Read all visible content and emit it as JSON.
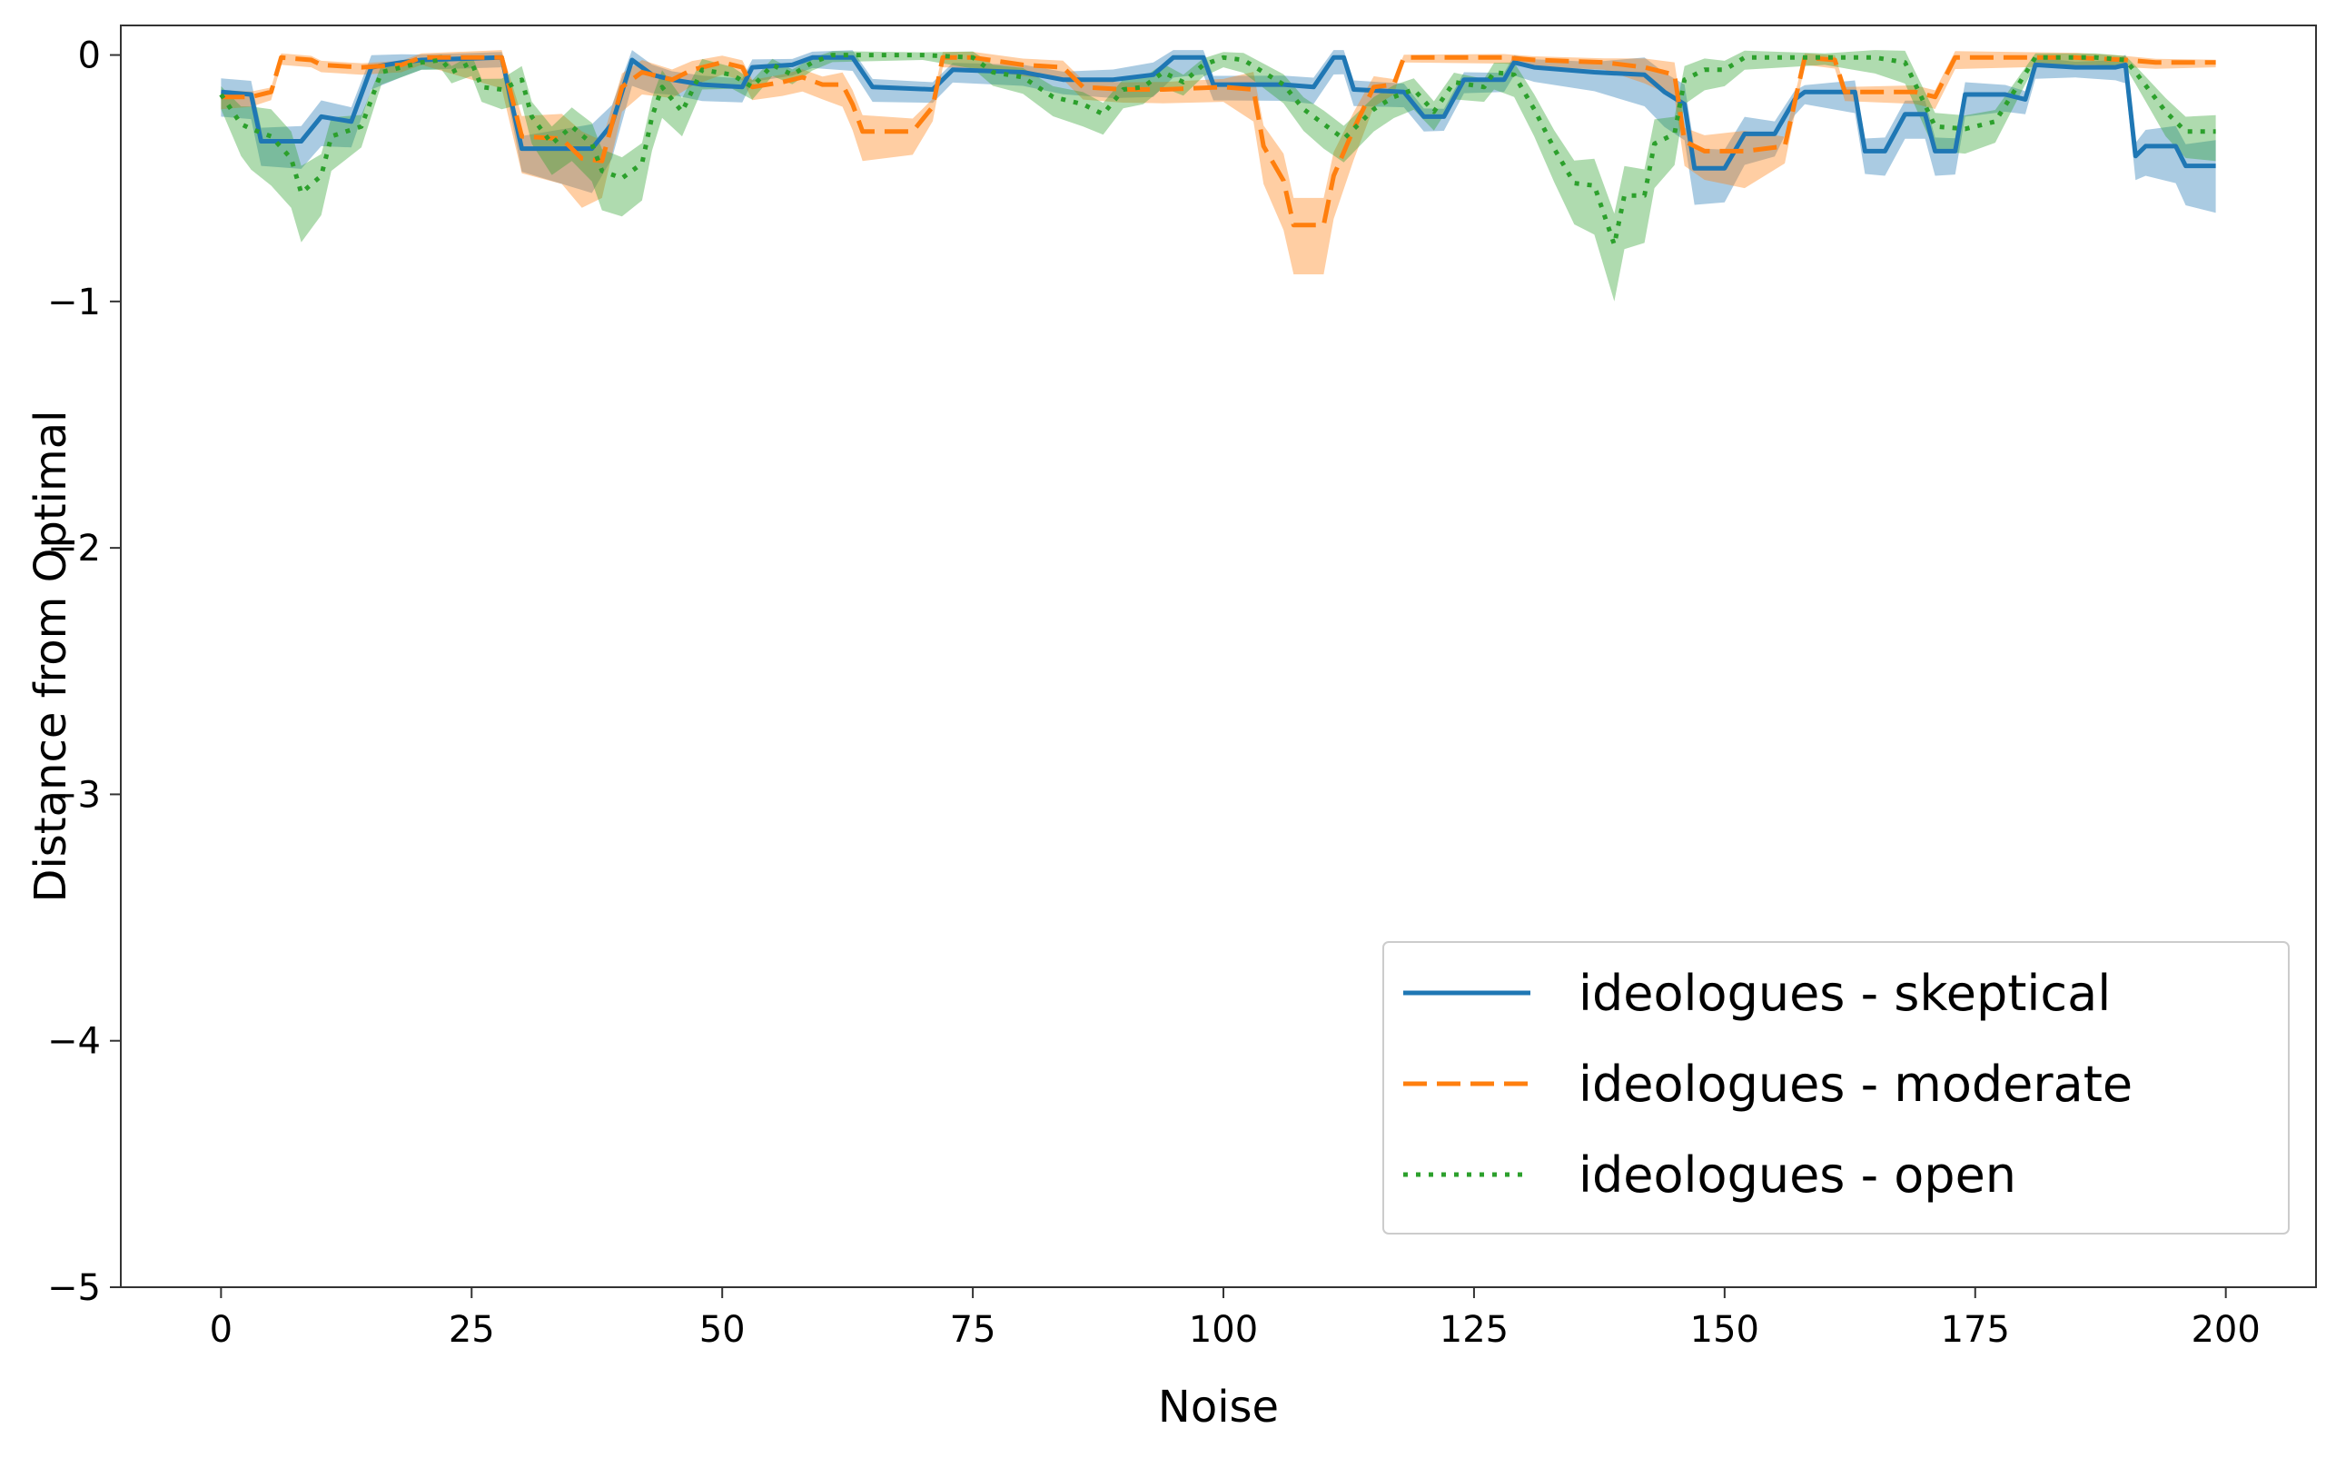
{
  "chart_data": {
    "type": "line",
    "title": "",
    "xlabel": "Noise",
    "ylabel": "Distance from Optimal",
    "xlim": [
      -10,
      209
    ],
    "ylim": [
      -5,
      0.12
    ],
    "xticks": [
      0,
      25,
      50,
      75,
      100,
      125,
      150,
      175,
      200
    ],
    "yticks": [
      0,
      -1,
      -2,
      -3,
      -4,
      -5
    ],
    "xtick_labels": [
      "0",
      "25",
      "50",
      "75",
      "100",
      "125",
      "150",
      "175",
      "200"
    ],
    "ytick_labels": [
      "0",
      "−1",
      "−2",
      "−3",
      "−4",
      "−5"
    ],
    "grid": false,
    "legend_position": "bottom-right",
    "band": "shaded variability band around each series",
    "series": [
      {
        "name": "ideologues - skeptical",
        "color": "#1f77b4",
        "style": "solid",
        "points": [
          [
            0,
            -0.15
          ],
          [
            3,
            -0.16
          ],
          [
            4,
            -0.35
          ],
          [
            8,
            -0.35
          ],
          [
            10,
            -0.25
          ],
          [
            13,
            -0.27
          ],
          [
            15,
            -0.05
          ],
          [
            18,
            -0.03
          ],
          [
            20,
            -0.02
          ],
          [
            28,
            -0.01
          ],
          [
            30,
            -0.38
          ],
          [
            37,
            -0.38
          ],
          [
            39,
            -0.28
          ],
          [
            41,
            -0.02
          ],
          [
            43,
            -0.08
          ],
          [
            45,
            -0.1
          ],
          [
            48,
            -0.12
          ],
          [
            52,
            -0.13
          ],
          [
            53,
            -0.05
          ],
          [
            57,
            -0.04
          ],
          [
            59,
            -0.01
          ],
          [
            63,
            -0.01
          ],
          [
            65,
            -0.13
          ],
          [
            71,
            -0.14
          ],
          [
            73,
            -0.06
          ],
          [
            80,
            -0.07
          ],
          [
            84,
            -0.1
          ],
          [
            89,
            -0.1
          ],
          [
            93,
            -0.08
          ],
          [
            95,
            -0.01
          ],
          [
            98,
            -0.01
          ],
          [
            99,
            -0.12
          ],
          [
            106,
            -0.12
          ],
          [
            109,
            -0.13
          ],
          [
            111,
            -0.01
          ],
          [
            112,
            -0.01
          ],
          [
            113,
            -0.14
          ],
          [
            118,
            -0.15
          ],
          [
            120,
            -0.25
          ],
          [
            122,
            -0.25
          ],
          [
            124,
            -0.1
          ],
          [
            128,
            -0.1
          ],
          [
            129,
            -0.03
          ],
          [
            131,
            -0.05
          ],
          [
            137,
            -0.07
          ],
          [
            142,
            -0.08
          ],
          [
            144,
            -0.15
          ],
          [
            146,
            -0.2
          ],
          [
            147,
            -0.46
          ],
          [
            150,
            -0.46
          ],
          [
            152,
            -0.32
          ],
          [
            155,
            -0.32
          ],
          [
            157,
            -0.18
          ],
          [
            158,
            -0.15
          ],
          [
            163,
            -0.15
          ],
          [
            164,
            -0.39
          ],
          [
            166,
            -0.39
          ],
          [
            168,
            -0.24
          ],
          [
            170,
            -0.24
          ],
          [
            171,
            -0.39
          ],
          [
            173,
            -0.39
          ],
          [
            174,
            -0.16
          ],
          [
            178,
            -0.16
          ],
          [
            180,
            -0.18
          ],
          [
            181,
            -0.04
          ],
          [
            185,
            -0.05
          ],
          [
            189,
            -0.05
          ],
          [
            190,
            -0.04
          ],
          [
            191,
            -0.41
          ],
          [
            192,
            -0.37
          ],
          [
            195,
            -0.37
          ],
          [
            196,
            -0.45
          ],
          [
            199,
            -0.45
          ]
        ],
        "bands": [
          [
            0,
            0.1
          ],
          [
            5,
            0.1
          ],
          [
            10,
            0.12
          ],
          [
            14,
            0.1
          ],
          [
            20,
            0.04
          ],
          [
            28,
            0.04
          ],
          [
            31,
            0.12
          ],
          [
            37,
            0.18
          ],
          [
            40,
            0.12
          ],
          [
            44,
            0.06
          ],
          [
            50,
            0.07
          ],
          [
            58,
            0.04
          ],
          [
            65,
            0.06
          ],
          [
            75,
            0.05
          ],
          [
            85,
            0.06
          ],
          [
            93,
            0.09
          ],
          [
            100,
            0.06
          ],
          [
            110,
            0.07
          ],
          [
            120,
            0.06
          ],
          [
            128,
            0.05
          ],
          [
            138,
            0.08
          ],
          [
            143,
            0.14
          ],
          [
            148,
            0.15
          ],
          [
            153,
            0.12
          ],
          [
            158,
            0.05
          ],
          [
            165,
            0.1
          ],
          [
            172,
            0.1
          ],
          [
            180,
            0.06
          ],
          [
            188,
            0.03
          ],
          [
            192,
            0.12
          ],
          [
            199,
            0.19
          ]
        ]
      },
      {
        "name": "ideologues - moderate",
        "color": "#ff7f0e",
        "style": "dashed",
        "points": [
          [
            0,
            -0.17
          ],
          [
            3,
            -0.17
          ],
          [
            5,
            -0.15
          ],
          [
            6,
            -0.01
          ],
          [
            9,
            -0.02
          ],
          [
            10,
            -0.04
          ],
          [
            14,
            -0.05
          ],
          [
            18,
            -0.04
          ],
          [
            20,
            -0.01
          ],
          [
            28,
            -0.01
          ],
          [
            30,
            -0.33
          ],
          [
            34,
            -0.34
          ],
          [
            36,
            -0.42
          ],
          [
            38,
            -0.43
          ],
          [
            40,
            -0.13
          ],
          [
            42,
            -0.07
          ],
          [
            45,
            -0.1
          ],
          [
            47,
            -0.06
          ],
          [
            50,
            -0.03
          ],
          [
            52,
            -0.05
          ],
          [
            53,
            -0.13
          ],
          [
            56,
            -0.11
          ],
          [
            58,
            -0.09
          ],
          [
            60,
            -0.12
          ],
          [
            62,
            -0.12
          ],
          [
            63,
            -0.2
          ],
          [
            64,
            -0.31
          ],
          [
            69,
            -0.31
          ],
          [
            71,
            -0.21
          ],
          [
            72,
            -0.01
          ],
          [
            75,
            -0.01
          ],
          [
            80,
            -0.04
          ],
          [
            84,
            -0.05
          ],
          [
            86,
            -0.13
          ],
          [
            90,
            -0.14
          ],
          [
            94,
            -0.14
          ],
          [
            100,
            -0.13
          ],
          [
            103,
            -0.14
          ],
          [
            104,
            -0.37
          ],
          [
            106,
            -0.51
          ],
          [
            107,
            -0.69
          ],
          [
            110,
            -0.69
          ],
          [
            111,
            -0.49
          ],
          [
            113,
            -0.3
          ],
          [
            115,
            -0.13
          ],
          [
            117,
            -0.12
          ],
          [
            118,
            -0.01
          ],
          [
            128,
            -0.01
          ],
          [
            131,
            -0.02
          ],
          [
            138,
            -0.03
          ],
          [
            142,
            -0.05
          ],
          [
            145,
            -0.08
          ],
          [
            146,
            -0.35
          ],
          [
            148,
            -0.39
          ],
          [
            152,
            -0.39
          ],
          [
            156,
            -0.37
          ],
          [
            158,
            -0.01
          ],
          [
            161,
            -0.02
          ],
          [
            162,
            -0.15
          ],
          [
            169,
            -0.15
          ],
          [
            171,
            -0.17
          ],
          [
            173,
            -0.01
          ],
          [
            185,
            -0.01
          ],
          [
            190,
            -0.02
          ],
          [
            193,
            -0.03
          ],
          [
            199,
            -0.03
          ]
        ],
        "bands": [
          [
            0,
            0.05
          ],
          [
            6,
            0.03
          ],
          [
            20,
            0.03
          ],
          [
            30,
            0.15
          ],
          [
            36,
            0.2
          ],
          [
            40,
            0.1
          ],
          [
            50,
            0.05
          ],
          [
            60,
            0.06
          ],
          [
            66,
            0.15
          ],
          [
            72,
            0.04
          ],
          [
            85,
            0.05
          ],
          [
            100,
            0.06
          ],
          [
            106,
            0.2
          ],
          [
            110,
            0.2
          ],
          [
            114,
            0.1
          ],
          [
            118,
            0.02
          ],
          [
            138,
            0.03
          ],
          [
            146,
            0.1
          ],
          [
            152,
            0.15
          ],
          [
            158,
            0.03
          ],
          [
            170,
            0.05
          ],
          [
            199,
            0.02
          ]
        ]
      },
      {
        "name": "ideologues - open",
        "color": "#2ca02c",
        "style": "dotted",
        "points": [
          [
            0,
            -0.16
          ],
          [
            2,
            -0.28
          ],
          [
            3,
            -0.3
          ],
          [
            5,
            -0.33
          ],
          [
            7,
            -0.42
          ],
          [
            8,
            -0.56
          ],
          [
            10,
            -0.49
          ],
          [
            11,
            -0.33
          ],
          [
            14,
            -0.29
          ],
          [
            16,
            -0.07
          ],
          [
            20,
            -0.03
          ],
          [
            22,
            -0.02
          ],
          [
            23,
            -0.07
          ],
          [
            25,
            -0.03
          ],
          [
            26,
            -0.13
          ],
          [
            28,
            -0.14
          ],
          [
            30,
            -0.1
          ],
          [
            31,
            -0.25
          ],
          [
            33,
            -0.36
          ],
          [
            35,
            -0.29
          ],
          [
            37,
            -0.36
          ],
          [
            38,
            -0.47
          ],
          [
            40,
            -0.5
          ],
          [
            42,
            -0.44
          ],
          [
            43,
            -0.25
          ],
          [
            44,
            -0.13
          ],
          [
            46,
            -0.23
          ],
          [
            48,
            -0.06
          ],
          [
            51,
            -0.08
          ],
          [
            53,
            -0.13
          ],
          [
            55,
            -0.04
          ],
          [
            57,
            -0.08
          ],
          [
            59,
            -0.03
          ],
          [
            61,
            0.0
          ],
          [
            70,
            0.0
          ],
          [
            75,
            -0.01
          ],
          [
            77,
            -0.07
          ],
          [
            80,
            -0.09
          ],
          [
            83,
            -0.17
          ],
          [
            86,
            -0.2
          ],
          [
            88,
            -0.24
          ],
          [
            90,
            -0.14
          ],
          [
            92,
            -0.13
          ],
          [
            94,
            -0.07
          ],
          [
            96,
            -0.11
          ],
          [
            98,
            -0.04
          ],
          [
            100,
            -0.01
          ],
          [
            102,
            -0.02
          ],
          [
            104,
            -0.07
          ],
          [
            106,
            -0.12
          ],
          [
            108,
            -0.22
          ],
          [
            110,
            -0.28
          ],
          [
            112,
            -0.34
          ],
          [
            115,
            -0.22
          ],
          [
            117,
            -0.17
          ],
          [
            119,
            -0.14
          ],
          [
            121,
            -0.23
          ],
          [
            123,
            -0.11
          ],
          [
            126,
            -0.13
          ],
          [
            127,
            -0.07
          ],
          [
            129,
            -0.08
          ],
          [
            131,
            -0.22
          ],
          [
            133,
            -0.38
          ],
          [
            135,
            -0.52
          ],
          [
            137,
            -0.53
          ],
          [
            139,
            -0.77
          ],
          [
            140,
            -0.57
          ],
          [
            142,
            -0.57
          ],
          [
            143,
            -0.36
          ],
          [
            145,
            -0.32
          ],
          [
            146,
            -0.1
          ],
          [
            148,
            -0.06
          ],
          [
            150,
            -0.06
          ],
          [
            152,
            -0.01
          ],
          [
            156,
            -0.01
          ],
          [
            160,
            -0.01
          ],
          [
            165,
            -0.01
          ],
          [
            168,
            -0.03
          ],
          [
            171,
            -0.29
          ],
          [
            174,
            -0.3
          ],
          [
            177,
            -0.27
          ],
          [
            181,
            -0.01
          ],
          [
            187,
            -0.01
          ],
          [
            190,
            -0.02
          ],
          [
            191,
            -0.07
          ],
          [
            194,
            -0.23
          ],
          [
            196,
            -0.31
          ],
          [
            199,
            -0.31
          ]
        ],
        "bands": [
          [
            0,
            0.06
          ],
          [
            4,
            0.2
          ],
          [
            8,
            0.2
          ],
          [
            12,
            0.12
          ],
          [
            16,
            0.05
          ],
          [
            20,
            0.03
          ],
          [
            26,
            0.06
          ],
          [
            32,
            0.12
          ],
          [
            38,
            0.16
          ],
          [
            42,
            0.15
          ],
          [
            46,
            0.1
          ],
          [
            50,
            0.06
          ],
          [
            60,
            0.03
          ],
          [
            70,
            0.02
          ],
          [
            78,
            0.06
          ],
          [
            86,
            0.09
          ],
          [
            92,
            0.07
          ],
          [
            100,
            0.04
          ],
          [
            110,
            0.1
          ],
          [
            120,
            0.08
          ],
          [
            126,
            0.06
          ],
          [
            132,
            0.12
          ],
          [
            139,
            0.23
          ],
          [
            143,
            0.18
          ],
          [
            146,
            0.1
          ],
          [
            152,
            0.05
          ],
          [
            160,
            0.03
          ],
          [
            170,
            0.1
          ],
          [
            176,
            0.1
          ],
          [
            181,
            0.03
          ],
          [
            190,
            0.03
          ],
          [
            194,
            0.1
          ],
          [
            199,
            0.12
          ]
        ]
      }
    ]
  }
}
